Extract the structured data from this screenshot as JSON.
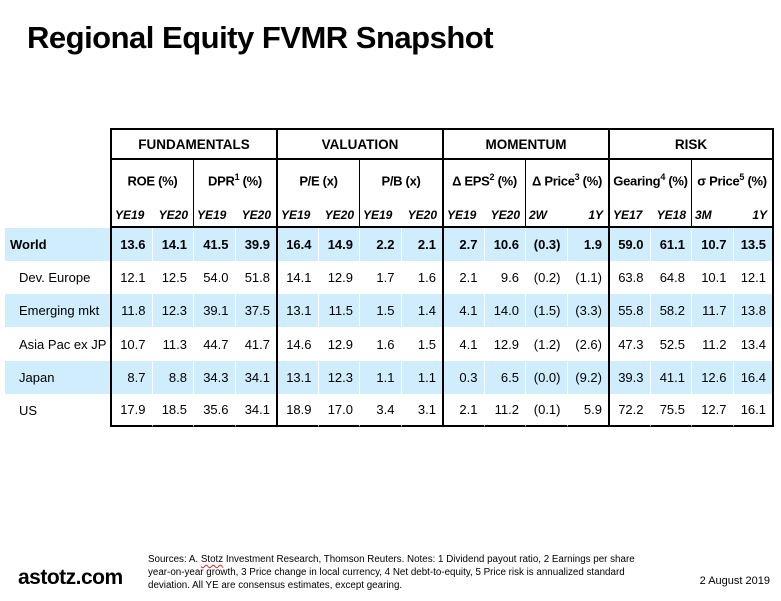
{
  "title": "Regional Equity FVMR Snapshot",
  "colors": {
    "row_band": "#cfedfc",
    "border": "#000000"
  },
  "table": {
    "groups": [
      {
        "label": "FUNDAMENTALS",
        "subgroups": [
          {
            "label_pre": "ROE",
            "label_sup": "",
            "label_post": " (%)",
            "periods": [
              "YE19",
              "YE20"
            ]
          },
          {
            "label_pre": "DPR",
            "label_sup": "1",
            "label_post": " (%)",
            "periods": [
              "YE19",
              "YE20"
            ]
          }
        ]
      },
      {
        "label": "VALUATION",
        "subgroups": [
          {
            "label_pre": "P/E",
            "label_sup": "",
            "label_post": " (x)",
            "periods": [
              "YE19",
              "YE20"
            ]
          },
          {
            "label_pre": "P/B",
            "label_sup": "",
            "label_post": " (x)",
            "periods": [
              "YE19",
              "YE20"
            ]
          }
        ]
      },
      {
        "label": "MOMENTUM",
        "subgroups": [
          {
            "label_pre": "Δ EPS",
            "label_sup": "2",
            "label_post": " (%)",
            "periods": [
              "YE19",
              "YE20"
            ]
          },
          {
            "label_pre": "Δ Price",
            "label_sup": "3",
            "label_post": " (%)",
            "periods": [
              "2W",
              "1Y"
            ]
          }
        ]
      },
      {
        "label": "RISK",
        "subgroups": [
          {
            "label_pre": "Gearing",
            "label_sup": "4",
            "label_post": " (%)",
            "periods": [
              "YE17",
              "YE18"
            ]
          },
          {
            "label_pre": "σ Price",
            "label_sup": "5",
            "label_post": " (%)",
            "periods": [
              "3M",
              "1Y"
            ]
          }
        ]
      }
    ],
    "rows": [
      {
        "label": "World",
        "bold": true,
        "values": [
          "13.6",
          "14.1",
          "41.5",
          "39.9",
          "16.4",
          "14.9",
          "2.2",
          "2.1",
          "2.7",
          "10.6",
          "(0.3)",
          "1.9",
          "59.0",
          "61.1",
          "10.7",
          "13.5"
        ]
      },
      {
        "label": "Dev. Europe",
        "bold": false,
        "values": [
          "12.1",
          "12.5",
          "54.0",
          "51.8",
          "14.1",
          "12.9",
          "1.7",
          "1.6",
          "2.1",
          "9.6",
          "(0.2)",
          "(1.1)",
          "63.8",
          "64.8",
          "10.1",
          "12.1"
        ]
      },
      {
        "label": "Emerging mkt",
        "bold": false,
        "values": [
          "11.8",
          "12.3",
          "39.1",
          "37.5",
          "13.1",
          "11.5",
          "1.5",
          "1.4",
          "4.1",
          "14.0",
          "(1.5)",
          "(3.3)",
          "55.8",
          "58.2",
          "11.7",
          "13.8"
        ]
      },
      {
        "label": "Asia Pac ex JP",
        "bold": false,
        "values": [
          "10.7",
          "11.3",
          "44.7",
          "41.7",
          "14.6",
          "12.9",
          "1.6",
          "1.5",
          "4.1",
          "12.9",
          "(1.2)",
          "(2.6)",
          "47.3",
          "52.5",
          "11.2",
          "13.4"
        ]
      },
      {
        "label": "Japan",
        "bold": false,
        "values": [
          "8.7",
          "8.8",
          "34.3",
          "34.1",
          "13.1",
          "12.3",
          "1.1",
          "1.1",
          "0.3",
          "6.5",
          "(0.0)",
          "(9.2)",
          "39.3",
          "41.1",
          "12.6",
          "16.4"
        ]
      },
      {
        "label": "US",
        "bold": false,
        "values": [
          "17.9",
          "18.5",
          "35.6",
          "34.1",
          "18.9",
          "17.0",
          "3.4",
          "3.1",
          "2.1",
          "11.2",
          "(0.1)",
          "5.9",
          "72.2",
          "75.5",
          "12.7",
          "16.1"
        ]
      }
    ]
  },
  "footer": {
    "logo": "astotz.com",
    "date": "2 August 2019",
    "sources": {
      "line1_pre": "Sources: A. ",
      "line1_word": "Stotz",
      "line1_post": " Investment Research, Thomson Reuters. Notes: 1 Dividend payout ratio, 2 Earnings per share",
      "line2": "year-on-year growth, 3 Price change in local currency, 4 Net debt-to-equity, 5 Price risk is annualized standard",
      "line3": "deviation. All YE are consensus estimates, except gearing."
    }
  }
}
